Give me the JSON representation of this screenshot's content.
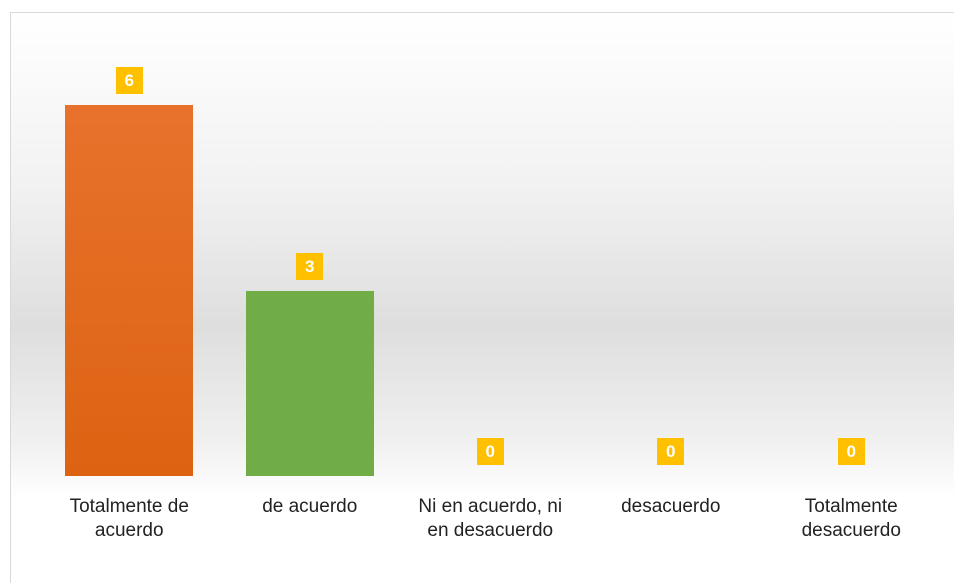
{
  "chart_data": {
    "type": "bar",
    "categories": [
      "Totalmente de acuerdo",
      "de acuerdo",
      "Ni en acuerdo, ni en desacuerdo",
      "desacuerdo",
      "Totalmente desacuerdo"
    ],
    "values": [
      6,
      3,
      0,
      0,
      0
    ],
    "colors": [
      "#e8722c",
      "#70ad47",
      "#a5a5a5",
      "#ffc000",
      "#4472c4"
    ],
    "label_color": "#ffc000"
  }
}
